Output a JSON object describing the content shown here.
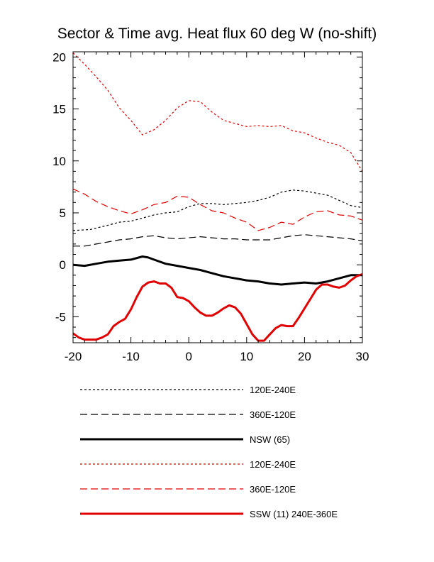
{
  "chart_data": {
    "type": "line",
    "title": "Sector & Time avg. Heat flux 60 deg W (no-shift)",
    "xlabel": "",
    "ylabel": "",
    "xlim": [
      -20,
      30
    ],
    "ylim": [
      -7.5,
      20.5
    ],
    "xticks": [
      -20,
      -10,
      0,
      10,
      20,
      30
    ],
    "yticks": [
      -5,
      0,
      5,
      10,
      15,
      20
    ],
    "grid": false,
    "legend_position": "below",
    "series": [
      {
        "name": "120E-240E",
        "color": "#000000",
        "style": "dotted",
        "width": 1.2,
        "x": [
          -20,
          -17,
          -14,
          -12,
          -10,
          -8,
          -6,
          -4,
          -2,
          0,
          2,
          4,
          6,
          8,
          10,
          12,
          14,
          16,
          18,
          20,
          22,
          24,
          26,
          28,
          30
        ],
        "y": [
          3.3,
          3.4,
          3.8,
          4.1,
          4.2,
          4.5,
          4.8,
          5.0,
          5.1,
          5.6,
          5.9,
          5.9,
          5.8,
          5.9,
          6.0,
          6.2,
          6.5,
          7.0,
          7.2,
          7.1,
          6.9,
          6.7,
          6.2,
          5.7,
          5.5
        ]
      },
      {
        "name": "360E-120E",
        "color": "#000000",
        "style": "dashed",
        "width": 1.2,
        "x": [
          -20,
          -18,
          -16,
          -14,
          -12,
          -10,
          -8,
          -6,
          -4,
          -2,
          0,
          2,
          4,
          6,
          8,
          10,
          12,
          14,
          16,
          18,
          20,
          22,
          24,
          26,
          28,
          30
        ],
        "y": [
          1.8,
          1.8,
          2.0,
          2.2,
          2.4,
          2.5,
          2.7,
          2.8,
          2.6,
          2.5,
          2.6,
          2.7,
          2.6,
          2.5,
          2.5,
          2.4,
          2.4,
          2.4,
          2.6,
          2.8,
          2.9,
          2.8,
          2.7,
          2.6,
          2.5,
          2.3
        ]
      },
      {
        "name": "NSW (65)",
        "color": "#000000",
        "style": "solid",
        "width": 3,
        "x": [
          -20,
          -18,
          -16,
          -14,
          -12,
          -10,
          -8,
          -7,
          -6,
          -4,
          -2,
          0,
          2,
          4,
          6,
          8,
          10,
          12,
          14,
          16,
          18,
          20,
          22,
          24,
          26,
          28,
          30
        ],
        "y": [
          0.0,
          -0.1,
          0.1,
          0.3,
          0.4,
          0.5,
          0.8,
          0.7,
          0.5,
          0.1,
          -0.1,
          -0.3,
          -0.5,
          -0.8,
          -1.1,
          -1.3,
          -1.5,
          -1.6,
          -1.8,
          -1.9,
          -1.8,
          -1.7,
          -1.8,
          -1.6,
          -1.3,
          -1.0,
          -1.0
        ]
      },
      {
        "name": "120E-240E",
        "color": "#e00000",
        "style": "dotted",
        "width": 1.2,
        "x": [
          -20,
          -18,
          -16,
          -14,
          -12,
          -10,
          -8,
          -6,
          -4,
          -2,
          0,
          2,
          4,
          6,
          8,
          10,
          12,
          14,
          16,
          18,
          20,
          22,
          24,
          26,
          28,
          30
        ],
        "y": [
          20.4,
          19.3,
          18.1,
          16.8,
          15.1,
          13.9,
          12.5,
          13.0,
          13.9,
          15.1,
          15.8,
          15.7,
          14.7,
          13.9,
          13.6,
          13.3,
          13.4,
          13.3,
          13.4,
          12.9,
          12.7,
          12.2,
          11.8,
          11.5,
          10.8,
          9.0
        ]
      },
      {
        "name": "360E-120E",
        "color": "#e00000",
        "style": "dashed",
        "width": 1.2,
        "x": [
          -20,
          -18,
          -16,
          -14,
          -12,
          -10,
          -8,
          -6,
          -4,
          -2,
          0,
          2,
          4,
          6,
          8,
          10,
          12,
          14,
          16,
          18,
          20,
          22,
          24,
          26,
          28,
          30
        ],
        "y": [
          7.3,
          6.8,
          6.1,
          5.6,
          5.2,
          4.9,
          5.3,
          5.8,
          6.0,
          6.6,
          6.5,
          5.8,
          5.2,
          5.0,
          4.5,
          4.1,
          3.3,
          3.6,
          4.1,
          3.9,
          4.6,
          5.1,
          5.2,
          4.8,
          4.7,
          4.3
        ]
      },
      {
        "name": "SSW (11) 240E-360E",
        "color": "#e00000",
        "style": "solid",
        "width": 3,
        "x": [
          -20,
          -19,
          -18,
          -16,
          -15,
          -14,
          -13,
          -12,
          -11,
          -10,
          -9,
          -8,
          -7,
          -6,
          -5,
          -4,
          -3,
          -2,
          -1,
          0,
          1,
          2,
          3,
          4,
          5,
          6,
          7,
          8,
          9,
          10,
          11,
          12,
          13,
          14,
          15,
          16,
          17,
          18,
          19,
          20,
          21,
          22,
          23,
          24,
          25,
          26,
          27,
          28,
          29,
          30
        ],
        "y": [
          -6.6,
          -7.0,
          -7.2,
          -7.2,
          -7.0,
          -6.7,
          -5.9,
          -5.5,
          -5.2,
          -4.3,
          -3.1,
          -2.1,
          -1.7,
          -1.6,
          -1.8,
          -1.8,
          -2.2,
          -3.1,
          -3.2,
          -3.5,
          -4.1,
          -4.6,
          -4.9,
          -4.9,
          -4.6,
          -4.2,
          -3.9,
          -4.1,
          -4.7,
          -5.7,
          -6.7,
          -7.3,
          -7.3,
          -6.7,
          -6.1,
          -5.8,
          -5.9,
          -5.9,
          -5.1,
          -4.2,
          -3.3,
          -2.4,
          -1.9,
          -1.9,
          -2.1,
          -2.2,
          -2.0,
          -1.5,
          -1.1,
          -0.9
        ]
      }
    ]
  }
}
